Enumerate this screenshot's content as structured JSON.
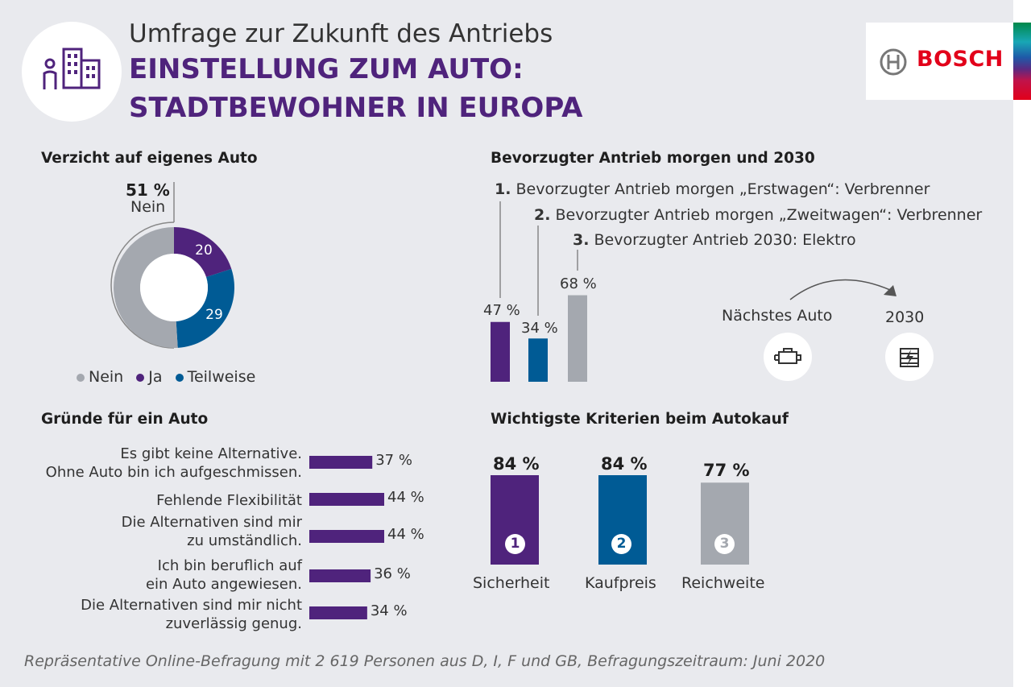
{
  "header": {
    "subtitle": "Umfrage zur Zukunft des Antriebs",
    "title_line1": "EINSTELLUNG ZUM AUTO:",
    "title_line2": "STADTBEWOHNER IN EUROPA"
  },
  "logo": {
    "text": "BOSCH",
    "icon": "bosch-armature-icon"
  },
  "colors": {
    "purple": "#4f237c",
    "blue": "#005b95",
    "gray": "#a4a8af",
    "brand_red": "#e2001a"
  },
  "donut": {
    "title": "Verzicht auf eigenes Auto",
    "callout_value": "51 %",
    "callout_label": "Nein",
    "slice_labels": {
      "ja": "20",
      "teilweise": "29"
    },
    "legend": [
      "Nein",
      "Ja",
      "Teilweise"
    ]
  },
  "antrieb": {
    "title": "Bevorzugter Antrieb morgen und 2030",
    "items": [
      {
        "num": "1.",
        "text": "Bevorzugter Antrieb morgen „Erstwagen“: Verbrenner",
        "pct": "47 %"
      },
      {
        "num": "2.",
        "text": "Bevorzugter Antrieb morgen „Zweitwagen“: Verbrenner",
        "pct": "34 %"
      },
      {
        "num": "3.",
        "text": "Bevorzugter Antrieb 2030: Elektro",
        "pct": "68 %"
      }
    ],
    "flow_from": "Nächstes Auto",
    "flow_to": "2030",
    "icons": [
      "engine-icon",
      "battery-icon"
    ]
  },
  "gruende": {
    "title": "Gründe für ein Auto",
    "rows": [
      {
        "line1": "Es gibt keine Alternative.",
        "line2": "Ohne Auto bin ich aufgeschmissen.",
        "pct": "37 %"
      },
      {
        "line1": "Fehlende Flexibilität",
        "line2": "",
        "pct": "44 %"
      },
      {
        "line1": "Die Alternativen sind mir",
        "line2": "zu umständlich.",
        "pct": "44 %"
      },
      {
        "line1": "Ich bin beruflich auf",
        "line2": "ein Auto angewiesen.",
        "pct": "36 %"
      },
      {
        "line1": "Die Alternativen  sind mir nicht",
        "line2": "zuverlässig genug.",
        "pct": "34 %"
      }
    ]
  },
  "kriterien": {
    "title": "Wichtigste Kriterien beim Autokauf",
    "items": [
      {
        "label": "Sicherheit",
        "pct": "84 %",
        "rank": "1"
      },
      {
        "label": "Kaufpreis",
        "pct": "84 %",
        "rank": "2"
      },
      {
        "label": "Reichweite",
        "pct": "77 %",
        "rank": "3"
      }
    ]
  },
  "footnote": "Repräsentative Online-Befragung mit 2 619 Personen aus D, I, F und GB, Befragungszeitraum: Juni 2020",
  "chart_data": [
    {
      "type": "pie",
      "title": "Verzicht auf eigenes Auto",
      "categories": [
        "Nein",
        "Ja",
        "Teilweise"
      ],
      "values": [
        51,
        20,
        29
      ],
      "legend": "bottom"
    },
    {
      "type": "bar",
      "title": "Bevorzugter Antrieb morgen und 2030",
      "categories": [
        "1.",
        "2.",
        "3."
      ],
      "values": [
        47,
        34,
        68
      ],
      "ylim": [
        0,
        100
      ]
    },
    {
      "type": "bar",
      "title": "Gründe für ein Auto",
      "orientation": "horizontal",
      "categories": [
        "Es gibt keine Alternative. Ohne Auto bin ich aufgeschmissen.",
        "Fehlende Flexibilität",
        "Die Alternativen sind mir zu umständlich.",
        "Ich bin beruflich auf ein Auto angewiesen.",
        "Die Alternativen  sind mir nicht zuverlässig genug."
      ],
      "values": [
        37,
        44,
        44,
        36,
        34
      ],
      "xlim": [
        0,
        100
      ]
    },
    {
      "type": "bar",
      "title": "Wichtigste Kriterien beim Autokauf",
      "categories": [
        "Sicherheit",
        "Kaufpreis",
        "Reichweite"
      ],
      "values": [
        84,
        84,
        77
      ],
      "ylim": [
        0,
        100
      ]
    }
  ]
}
